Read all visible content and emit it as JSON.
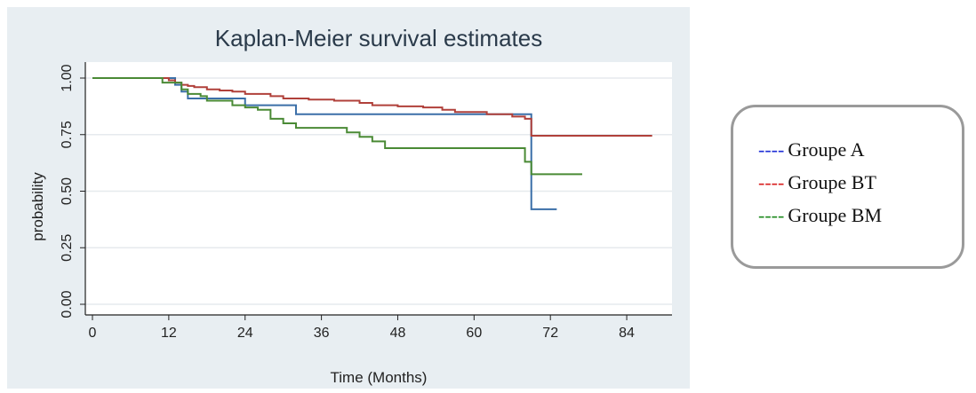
{
  "chart_data": {
    "type": "line",
    "title": "Kaplan-Meier survival estimates",
    "xlabel": "Time (Months)",
    "ylabel": "probability",
    "xlim": [
      0,
      90
    ],
    "ylim": [
      0,
      1
    ],
    "xticks": [
      0,
      12,
      24,
      36,
      48,
      60,
      72,
      84
    ],
    "yticks": [
      "0.00",
      "0.25",
      "0.50",
      "0.75",
      "1.00"
    ],
    "grid": true,
    "legend_position": "right",
    "series": [
      {
        "name": "Groupe A",
        "color": "#3b6fa8",
        "x": [
          0,
          12,
          13,
          14,
          15,
          24,
          32,
          69,
          69,
          73
        ],
        "y": [
          1.0,
          1.0,
          0.97,
          0.94,
          0.91,
          0.88,
          0.84,
          0.84,
          0.42,
          0.42
        ]
      },
      {
        "name": "Groupe BT",
        "color": "#b0403a",
        "x": [
          0,
          11,
          12,
          13,
          14,
          15,
          16,
          18,
          20,
          22,
          24,
          28,
          30,
          34,
          38,
          42,
          44,
          48,
          52,
          55,
          57,
          62,
          66,
          68,
          69,
          88
        ],
        "y": [
          1.0,
          1.0,
          0.99,
          0.98,
          0.97,
          0.965,
          0.96,
          0.95,
          0.945,
          0.94,
          0.93,
          0.92,
          0.91,
          0.905,
          0.9,
          0.89,
          0.88,
          0.875,
          0.87,
          0.86,
          0.85,
          0.84,
          0.83,
          0.82,
          0.745,
          0.745
        ]
      },
      {
        "name": "Groupe BM",
        "color": "#4a8a35",
        "x": [
          0,
          10,
          11,
          14,
          15,
          17,
          18,
          22,
          24,
          26,
          28,
          30,
          32,
          40,
          42,
          44,
          46,
          67,
          68,
          69,
          77
        ],
        "y": [
          1.0,
          1.0,
          0.98,
          0.95,
          0.93,
          0.92,
          0.9,
          0.88,
          0.87,
          0.86,
          0.82,
          0.8,
          0.78,
          0.76,
          0.74,
          0.72,
          0.69,
          0.69,
          0.63,
          0.575,
          0.575
        ]
      }
    ]
  },
  "legend": {
    "items": [
      {
        "dash": "----",
        "label": "Groupe A",
        "color": "#1f2fd6"
      },
      {
        "dash": "----",
        "label": "Groupe BT",
        "color": "#d81f1f"
      },
      {
        "dash": "----",
        "label": "Groupe BM",
        "color": "#1f8a1f"
      }
    ]
  }
}
